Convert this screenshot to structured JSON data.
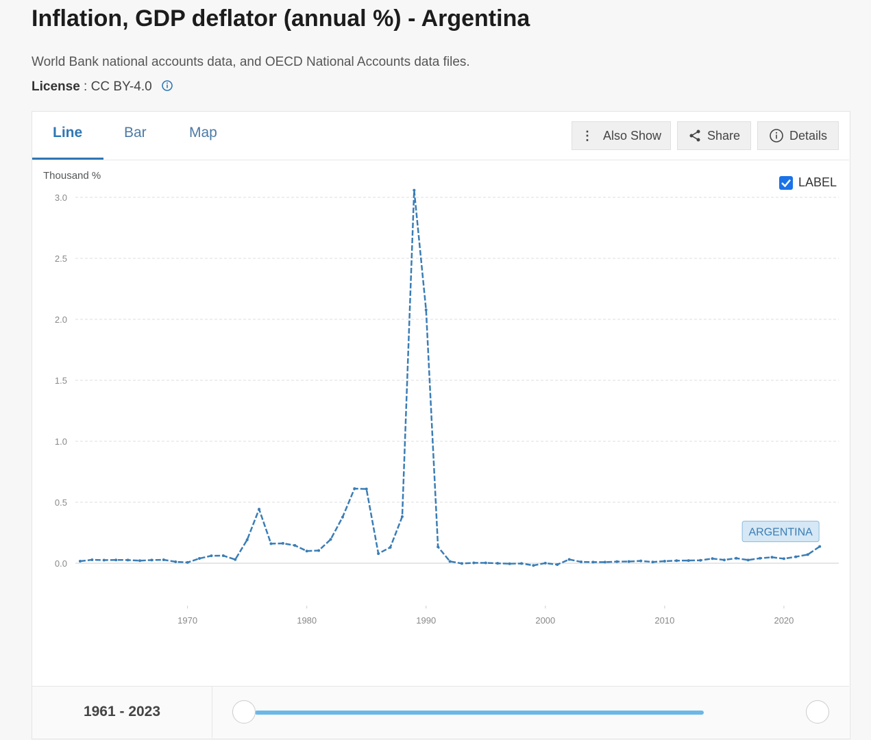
{
  "header": {
    "title": "Inflation, GDP deflator (annual %) - Argentina",
    "source": "World Bank national accounts data, and OECD National Accounts data files.",
    "license_label": "License",
    "license_value": ": CC BY-4.0"
  },
  "tabs": [
    "Line",
    "Bar",
    "Map"
  ],
  "buttons": [
    "Also Show",
    "Share",
    "Details"
  ],
  "label_toggle": "LABEL",
  "range": "1961 - 2023",
  "chart_data": {
    "type": "line",
    "y_axis_label": "Thousand %",
    "x": [
      1961,
      1962,
      1963,
      1964,
      1965,
      1966,
      1967,
      1968,
      1969,
      1970,
      1971,
      1972,
      1973,
      1974,
      1975,
      1976,
      1977,
      1978,
      1979,
      1980,
      1981,
      1982,
      1983,
      1984,
      1985,
      1986,
      1987,
      1988,
      1989,
      1990,
      1991,
      1992,
      1993,
      1994,
      1995,
      1996,
      1997,
      1998,
      1999,
      2000,
      2001,
      2002,
      2003,
      2004,
      2005,
      2006,
      2007,
      2008,
      2009,
      2010,
      2011,
      2012,
      2013,
      2014,
      2015,
      2016,
      2017,
      2018,
      2019,
      2020,
      2021,
      2022,
      2023
    ],
    "series": [
      {
        "name": "ARGENTINA",
        "color": "#3a7db5",
        "values": [
          0.017,
          0.028,
          0.025,
          0.027,
          0.026,
          0.021,
          0.026,
          0.028,
          0.012,
          0.006,
          0.039,
          0.061,
          0.062,
          0.03,
          0.192,
          0.443,
          0.16,
          0.163,
          0.146,
          0.1,
          0.104,
          0.195,
          0.378,
          0.612,
          0.609,
          0.079,
          0.13,
          0.382,
          3.058,
          2.077,
          0.134,
          0.015,
          -0.002,
          0.003,
          0.003,
          -0.001,
          -0.004,
          -0.002,
          -0.018,
          0.001,
          -0.011,
          0.031,
          0.011,
          0.009,
          0.009,
          0.013,
          0.014,
          0.019,
          0.01,
          0.017,
          0.021,
          0.022,
          0.024,
          0.038,
          0.027,
          0.041,
          0.026,
          0.041,
          0.049,
          0.037,
          0.053,
          0.071,
          0.137
        ]
      }
    ],
    "xlim": [
      1960.6,
      2024.6
    ],
    "xticks": [
      1970,
      1980,
      1990,
      2000,
      2010,
      2020
    ],
    "ylim": [
      -0.2,
      3.2
    ],
    "yticks": [
      {
        "value": 0,
        "label": "0.0"
      },
      {
        "value": 0.5,
        "label": "0.5"
      },
      {
        "value": 1,
        "label": "1.0"
      },
      {
        "value": 1.5,
        "label": "1.5"
      },
      {
        "value": 2,
        "label": "2.0"
      },
      {
        "value": 2.5,
        "label": "2.5"
      },
      {
        "value": 3,
        "label": "3.0"
      }
    ],
    "grid": true
  }
}
